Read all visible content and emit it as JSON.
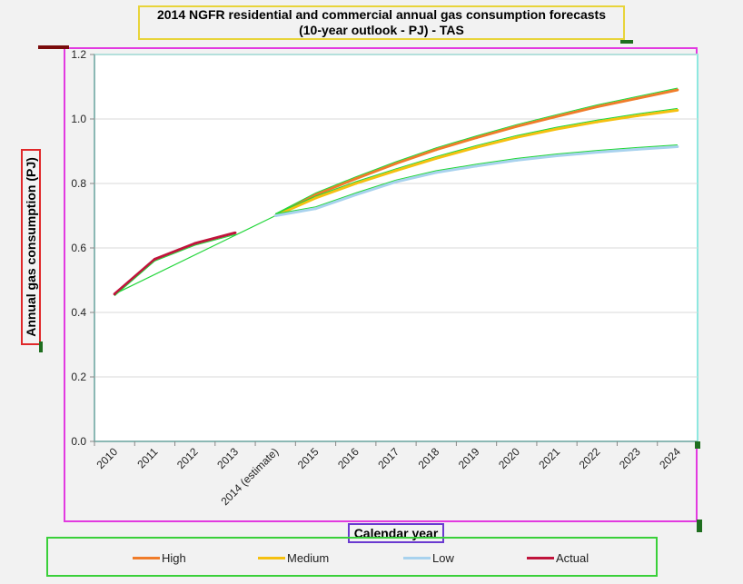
{
  "chart_data": {
    "type": "line",
    "title_lines": [
      "2014 NGFR residential and commercial annual gas consumption forecasts",
      "(10-year outlook - PJ) - TAS"
    ],
    "xlabel": "Calendar year",
    "ylabel": "Annual gas consumption (PJ)",
    "categories": [
      "2010",
      "2011",
      "2012",
      "2013",
      "2014 (estimate)",
      "2015",
      "2016",
      "2017",
      "2018",
      "2019",
      "2020",
      "2021",
      "2022",
      "2023",
      "2024"
    ],
    "ylim": [
      0,
      1.2
    ],
    "yticks": [
      "0.0",
      "0.2",
      "0.4",
      "0.6",
      "0.8",
      "1.0",
      "1.2"
    ],
    "grid": true,
    "legend_position": "bottom",
    "series": [
      {
        "name": "High",
        "color": "#f07c2a",
        "values": [
          null,
          null,
          null,
          null,
          0.7,
          0.765,
          0.815,
          0.862,
          0.905,
          0.942,
          0.977,
          1.008,
          1.038,
          1.064,
          1.09
        ]
      },
      {
        "name": "Medium",
        "color": "#f5c010",
        "values": [
          null,
          null,
          null,
          null,
          0.7,
          0.755,
          0.8,
          0.84,
          0.878,
          0.912,
          0.943,
          0.969,
          0.991,
          1.01,
          1.027
        ]
      },
      {
        "name": "Low",
        "color": "#a8d2ee",
        "values": [
          null,
          null,
          null,
          null,
          0.7,
          0.722,
          0.765,
          0.805,
          0.834,
          0.854,
          0.872,
          0.886,
          0.897,
          0.906,
          0.914
        ]
      },
      {
        "name": "Actual",
        "color": "#c0143c",
        "values": [
          0.457,
          0.565,
          0.614,
          0.647,
          null,
          null,
          null,
          null,
          null,
          null,
          null,
          null,
          null,
          null,
          null
        ]
      }
    ]
  }
}
